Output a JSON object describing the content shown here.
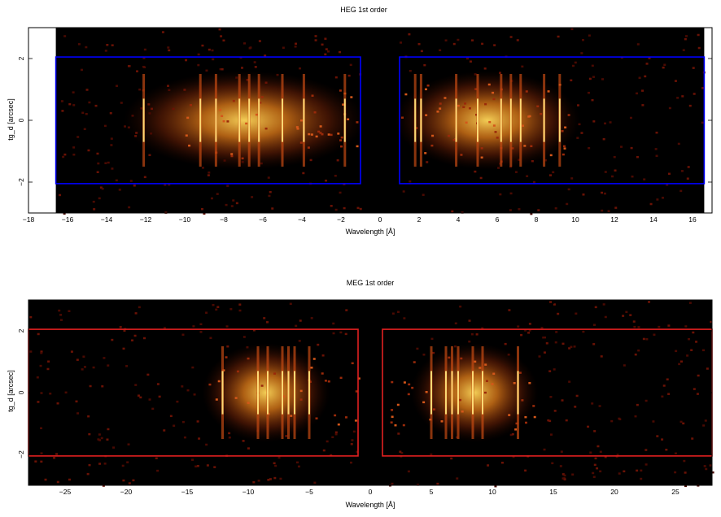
{
  "chart_data": [
    {
      "type": "heatmap",
      "title": "HEG 1st order",
      "xlabel": "Wavelength [Å]",
      "ylabel": "tg_d [arcsec]",
      "xlim": [
        -18,
        17
      ],
      "ylim": [
        -3,
        3
      ],
      "data_extent_x": [
        -16.6,
        16.6
      ],
      "xticks": [
        -18,
        -16,
        -14,
        -12,
        -10,
        -8,
        -6,
        -4,
        -2,
        0,
        2,
        4,
        6,
        8,
        10,
        12,
        14,
        16
      ],
      "yticks": [
        -2,
        0,
        2
      ],
      "box_color": "#0000ff",
      "regions": [
        {
          "x": [
            -16.6,
            -1.0
          ],
          "y": [
            -2.05,
            2.05
          ]
        },
        {
          "x": [
            1.0,
            16.6
          ],
          "y": [
            -2.05,
            2.05
          ]
        }
      ],
      "bright_lines": [
        -12.1,
        -9.2,
        -8.4,
        -7.2,
        -6.7,
        -6.2,
        -5.0,
        -3.9,
        -1.8,
        1.8,
        2.1,
        3.9,
        5.0,
        6.2,
        6.7,
        7.2,
        8.4,
        9.2
      ]
    },
    {
      "type": "heatmap",
      "title": "MEG 1st order",
      "xlabel": "Wavelength [Å]",
      "ylabel": "tg_d [arcsec]",
      "xlim": [
        -28,
        28
      ],
      "ylim": [
        -3,
        3
      ],
      "data_extent_x": [
        -28,
        28
      ],
      "xticks": [
        -25,
        -20,
        -15,
        -10,
        -5,
        0,
        5,
        10,
        15,
        20,
        25
      ],
      "yticks": [
        -2,
        0,
        2
      ],
      "box_color": "#e02020",
      "regions": [
        {
          "x": [
            -28,
            -1.0
          ],
          "y": [
            -2.05,
            2.05
          ]
        },
        {
          "x": [
            1.0,
            28
          ],
          "y": [
            -2.05,
            2.05
          ]
        }
      ],
      "bright_lines": [
        -12.1,
        -9.2,
        -8.4,
        -7.2,
        -6.7,
        -6.2,
        -5.0,
        5.0,
        6.2,
        6.7,
        7.2,
        8.4,
        9.2,
        12.1
      ]
    }
  ]
}
